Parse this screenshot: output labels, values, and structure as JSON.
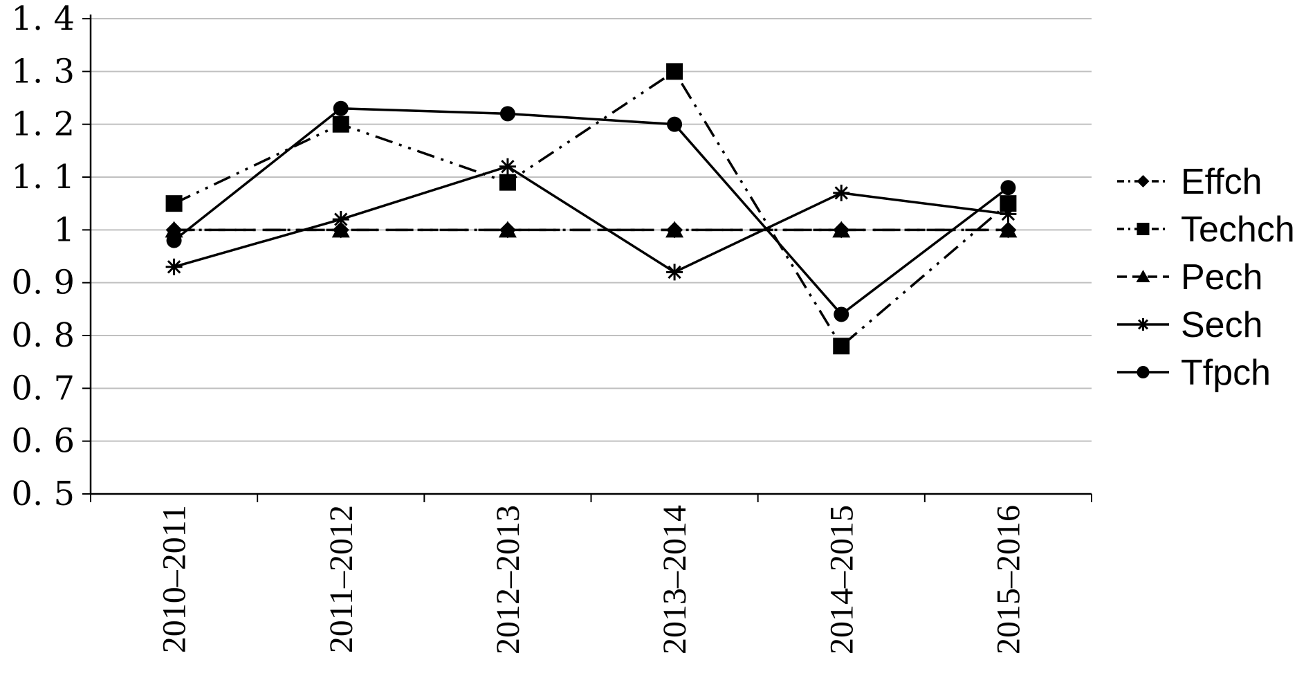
{
  "chart_data": {
    "type": "line",
    "title": "",
    "xlabel": "",
    "ylabel": "",
    "categories": [
      "2010–2011",
      "2011–2012",
      "2012–2013",
      "2013–2014",
      "2014–2015",
      "2015–2016"
    ],
    "ylim": [
      0.5,
      1.4
    ],
    "yticks": [
      0.5,
      0.6,
      0.7,
      0.8,
      0.9,
      1,
      1.1,
      1.2,
      1.3,
      1.4
    ],
    "ytick_labels": [
      "0. 5",
      "0. 6",
      "0. 7",
      "0. 8",
      "0. 9",
      "1",
      "1. 1",
      "1. 2",
      "1. 3",
      "1. 4"
    ],
    "grid": "horizontal",
    "legend_position": "right",
    "series": [
      {
        "name": "Effch",
        "marker": "diamond",
        "dash": "dash-dot-dot",
        "values": [
          1.0,
          1.0,
          1.0,
          1.0,
          1.0,
          1.0
        ]
      },
      {
        "name": "Techch",
        "marker": "square",
        "dash": "dash-dot-dot",
        "values": [
          1.05,
          1.2,
          1.09,
          1.3,
          0.78,
          1.05
        ]
      },
      {
        "name": "Pech",
        "marker": "triangle",
        "dash": "dash",
        "values": [
          1.0,
          1.0,
          1.0,
          1.0,
          1.0,
          1.0
        ]
      },
      {
        "name": "Sech",
        "marker": "star",
        "dash": "solid",
        "values": [
          0.93,
          1.02,
          1.12,
          0.92,
          1.07,
          1.03
        ]
      },
      {
        "name": "Tfpch",
        "marker": "circle",
        "dash": "solid",
        "values": [
          0.98,
          1.23,
          1.22,
          1.2,
          0.84,
          1.08
        ]
      }
    ],
    "colors": {
      "line": "#000000",
      "grid": "#c0c0c0",
      "axis": "#000000"
    }
  }
}
